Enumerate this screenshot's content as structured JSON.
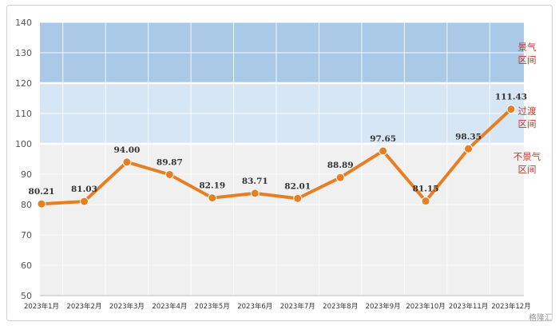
{
  "chart_data": {
    "type": "line",
    "categories": [
      "2023年1月",
      "2023年2月",
      "2023年3月",
      "2023年4月",
      "2023年5月",
      "2023年6月",
      "2023年7月",
      "2023年8月",
      "2023年9月",
      "2023年10月",
      "2023年11月",
      "2023年12月"
    ],
    "values": [
      80.21,
      81.03,
      94.0,
      89.87,
      82.19,
      83.71,
      82.01,
      88.89,
      97.65,
      81.15,
      98.35,
      111.43
    ],
    "value_labels": [
      "80.21",
      "81.03",
      "94.00",
      "89.87",
      "82.19",
      "83.71",
      "82.01",
      "88.89",
      "97.65",
      "81.15",
      "98.35",
      "111.43"
    ],
    "y_ticks": [
      50,
      60,
      70,
      80,
      90,
      100,
      110,
      120,
      130,
      140
    ],
    "ylim": [
      50,
      140
    ],
    "grid": true,
    "zones": [
      {
        "range": [
          120,
          140
        ],
        "label_line1": "景气",
        "label_line2": "区间",
        "color": "#a9c9e6"
      },
      {
        "range": [
          100,
          120
        ],
        "label_line1": "过渡",
        "label_line2": "区间",
        "color": "#d6e6f4"
      },
      {
        "range": [
          50,
          100
        ],
        "label_line1": "不景气",
        "label_line2": "区间",
        "color": "#f0f0f0"
      }
    ],
    "line_color": "#e67e22",
    "zone_label_color": "#c0392b"
  },
  "watermark": "格隆汇"
}
